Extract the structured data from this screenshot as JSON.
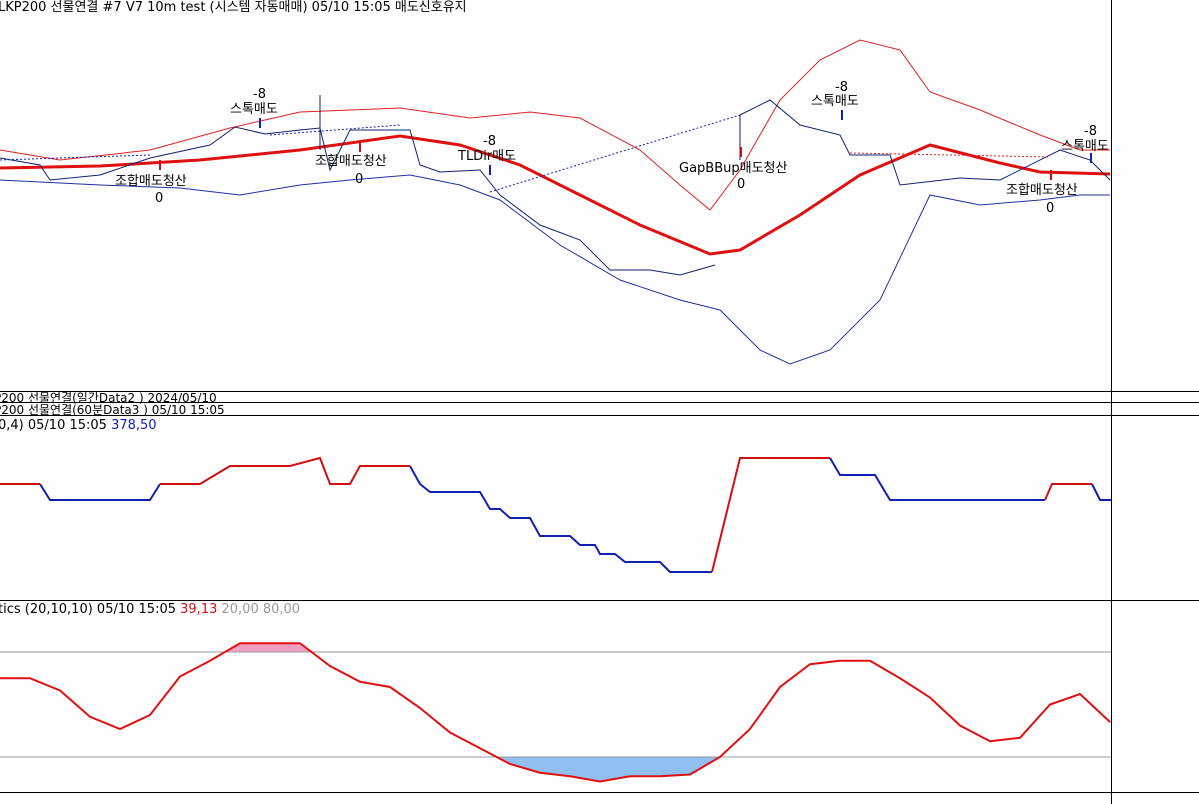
{
  "header": {
    "title": "LKP200 선물연결 #7 V7 10m test (시스템 자동매매) 05/10 15:05 매도신호유지"
  },
  "price_panel": {
    "annotations": [
      "-8",
      "스톡매도",
      "조합매도청산",
      "0",
      "조합매도청산",
      "0",
      "-8",
      "TLDir매도",
      "GapBBup매도청산",
      "0",
      "-8",
      "스톡매도",
      "-8",
      "스톡매도",
      "조합매도청산",
      "0"
    ]
  },
  "data_rows": [
    "P200 선물연결(일간Data2 ) 2024/05/10",
    "P200 선물연결(60분Data3 ) 05/10 15:05"
  ],
  "indicator_panel": {
    "label": "0,4) 05/10 15:05",
    "value": "378,50"
  },
  "stochastics_panel": {
    "label": "tics  (20,10,10) 05/10 15:05",
    "value": "39,13",
    "low": "20,00",
    "high": "80,00"
  },
  "chart_data": {
    "type": "line",
    "color": "#e01010",
    "ylim": [
      0,
      100
    ],
    "reference_lines": [
      20,
      80
    ],
    "values": [
      65,
      65,
      58,
      43,
      36,
      44,
      66,
      75,
      85,
      85,
      85,
      72,
      63,
      60,
      48,
      34,
      25,
      16,
      11,
      9,
      6,
      9,
      9,
      10,
      20,
      36,
      60,
      73,
      75,
      75,
      65,
      54,
      38,
      29,
      31,
      50,
      56,
      40
    ]
  }
}
